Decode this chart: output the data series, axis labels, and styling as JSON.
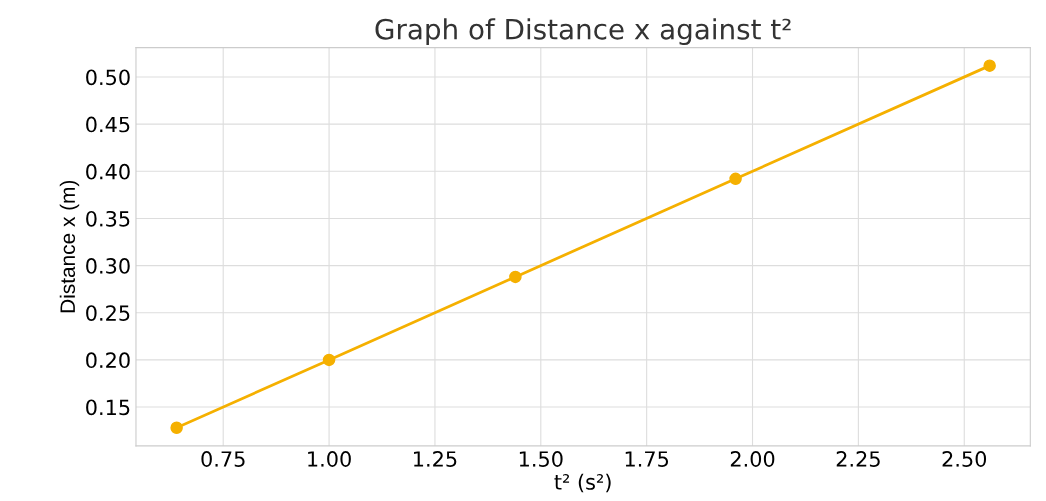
{
  "chart_data": {
    "type": "line",
    "title": "Graph of Distance x against t²",
    "xlabel": "t² (s²)",
    "ylabel": "Distance x (m)",
    "x": [
      0.64,
      1.0,
      1.44,
      1.96,
      2.56
    ],
    "series": [
      {
        "color": "#f5b000",
        "values": [
          0.128,
          0.2,
          0.288,
          0.392,
          0.512
        ]
      }
    ],
    "xlim": [
      0.544,
      2.656
    ],
    "ylim": [
      0.1088,
      0.5312
    ],
    "xticks": [
      {
        "value": 0.75,
        "label": "0.75"
      },
      {
        "value": 1.0,
        "label": "1.00"
      },
      {
        "value": 1.25,
        "label": "1.25"
      },
      {
        "value": 1.5,
        "label": "1.50"
      },
      {
        "value": 1.75,
        "label": "1.75"
      },
      {
        "value": 2.0,
        "label": "2.00"
      },
      {
        "value": 2.25,
        "label": "2.25"
      },
      {
        "value": 2.5,
        "label": "2.50"
      }
    ],
    "yticks": [
      {
        "value": 0.15,
        "label": "0.15"
      },
      {
        "value": 0.2,
        "label": "0.20"
      },
      {
        "value": 0.25,
        "label": "0.25"
      },
      {
        "value": 0.3,
        "label": "0.30"
      },
      {
        "value": 0.35,
        "label": "0.35"
      },
      {
        "value": 0.4,
        "label": "0.40"
      },
      {
        "value": 0.45,
        "label": "0.45"
      },
      {
        "value": 0.5,
        "label": "0.50"
      }
    ],
    "grid": true,
    "marker": "circle",
    "line_style": "solid"
  }
}
